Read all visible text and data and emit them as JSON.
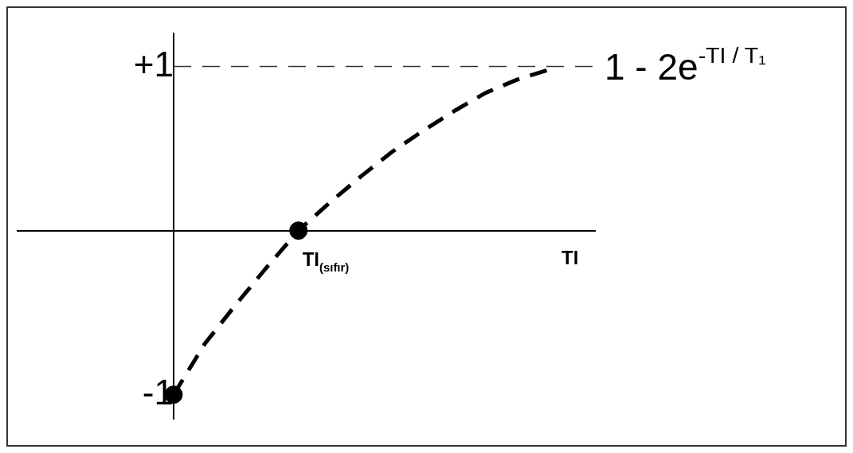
{
  "chart_data": {
    "type": "line",
    "xlabel": "TI",
    "categories": [
      null,
      null,
      null,
      null,
      null,
      null,
      null,
      null,
      null,
      null,
      null,
      null,
      null
    ],
    "series": [
      {
        "color": "#000000",
        "values": [
          -1,
          -0.69,
          -0.45,
          -0.22,
          0,
          0.17,
          0.33,
          0.48,
          0.61,
          0.73,
          0.84,
          0.92,
          0.98
        ],
        "line_style": "dashed",
        "marker": "none"
      },
      {
        "type": "scatter",
        "color": "#000000",
        "values": [
          -1,
          null,
          null,
          null,
          0,
          null,
          null,
          null,
          null,
          null,
          null,
          null,
          null
        ],
        "marker": "circle"
      }
    ],
    "ylim": [
      -1.15,
      1.2
    ],
    "yticks": [
      {
        "value": 1,
        "label": "+1"
      },
      {
        "value": -1,
        "label": "-1"
      }
    ],
    "tick_labels": "y",
    "ref_lines": [
      {
        "axis": "y",
        "value": 1,
        "label": "1 - 2e$^{-TI / T₁}$",
        "color": "#333333",
        "line_style": "dashed"
      }
    ],
    "annotations": [
      "TI$_{(sıfır)}$"
    ]
  }
}
